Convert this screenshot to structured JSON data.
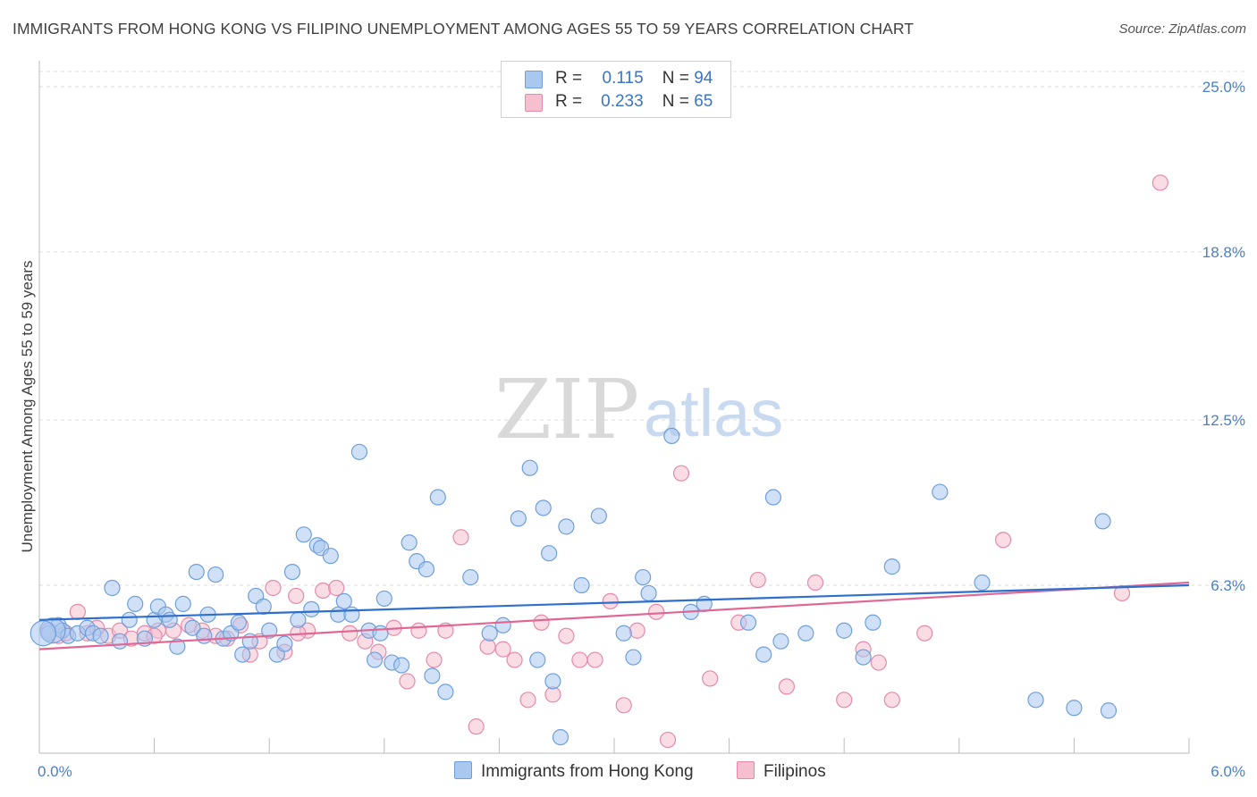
{
  "header": {
    "title": "IMMIGRANTS FROM HONG KONG VS FILIPINO UNEMPLOYMENT AMONG AGES 55 TO 59 YEARS CORRELATION CHART",
    "source": "Source: ZipAtlas.com"
  },
  "watermark": {
    "zip": "ZIP",
    "atlas": "atlas"
  },
  "legend": {
    "rows": [
      {
        "r_label": "R =",
        "r_value": "0.115",
        "n_label": "N =",
        "n_value": "94"
      },
      {
        "r_label": "R =",
        "r_value": "0.233",
        "n_label": "N =",
        "n_value": "65"
      }
    ]
  },
  "colors": {
    "blue_fill": "#a9c8f0",
    "blue_stroke": "#6f9fdb",
    "blue_line": "#2f6fcc",
    "pink_fill": "#f6bfd0",
    "pink_stroke": "#e58aaa",
    "pink_line": "#e06794",
    "tick_text": "#4a7fc8",
    "grid": "#dddddd"
  },
  "chart_data": {
    "type": "scatter",
    "title": "IMMIGRANTS FROM HONG KONG VS FILIPINO UNEMPLOYMENT AMONG AGES 55 TO 59 YEARS CORRELATION CHART",
    "xlabel": "",
    "ylabel": "Unemployment Among Ages 55 to 59 years",
    "xlim": [
      0,
      6.0
    ],
    "ylim": [
      0,
      25.0
    ],
    "x_tick_labels": [
      "0.0%",
      "6.0%"
    ],
    "y_ticks": [
      6.3,
      12.5,
      18.8,
      25.0
    ],
    "y_tick_labels": [
      "6.3%",
      "12.5%",
      "18.8%",
      "25.0%"
    ],
    "grid": "horizontal dashed",
    "legend_position": "top-center",
    "series": [
      {
        "name": "Immigrants from Hong Kong",
        "color": "#a9c8f0",
        "trend": {
          "x": [
            0,
            6.0
          ],
          "y": [
            5.0,
            6.3
          ]
        },
        "points": [
          [
            0.05,
            4.5
          ],
          [
            0.1,
            4.8
          ],
          [
            0.12,
            4.6
          ],
          [
            0.15,
            4.4
          ],
          [
            0.2,
            4.5
          ],
          [
            0.25,
            4.7
          ],
          [
            0.28,
            4.5
          ],
          [
            0.32,
            4.4
          ],
          [
            0.38,
            6.2
          ],
          [
            0.42,
            4.2
          ],
          [
            0.47,
            5.0
          ],
          [
            0.5,
            5.6
          ],
          [
            0.55,
            4.3
          ],
          [
            0.6,
            5.0
          ],
          [
            0.62,
            5.5
          ],
          [
            0.66,
            5.2
          ],
          [
            0.68,
            5.0
          ],
          [
            0.72,
            4.0
          ],
          [
            0.75,
            5.6
          ],
          [
            0.8,
            4.7
          ],
          [
            0.82,
            6.8
          ],
          [
            0.86,
            4.4
          ],
          [
            0.88,
            5.2
          ],
          [
            0.92,
            6.7
          ],
          [
            0.96,
            4.3
          ],
          [
            1.0,
            4.5
          ],
          [
            1.04,
            4.9
          ],
          [
            1.06,
            3.7
          ],
          [
            1.1,
            4.2
          ],
          [
            1.13,
            5.9
          ],
          [
            1.17,
            5.5
          ],
          [
            1.2,
            4.6
          ],
          [
            1.24,
            3.7
          ],
          [
            1.28,
            4.1
          ],
          [
            1.32,
            6.8
          ],
          [
            1.35,
            5.0
          ],
          [
            1.38,
            8.2
          ],
          [
            1.42,
            5.4
          ],
          [
            1.45,
            7.8
          ],
          [
            1.47,
            7.7
          ],
          [
            1.52,
            7.4
          ],
          [
            1.56,
            5.2
          ],
          [
            1.59,
            5.7
          ],
          [
            1.63,
            5.2
          ],
          [
            1.67,
            11.3
          ],
          [
            1.72,
            4.6
          ],
          [
            1.75,
            3.5
          ],
          [
            1.78,
            4.5
          ],
          [
            1.8,
            5.8
          ],
          [
            1.84,
            3.4
          ],
          [
            1.89,
            3.3
          ],
          [
            1.93,
            7.9
          ],
          [
            1.97,
            7.2
          ],
          [
            2.02,
            6.9
          ],
          [
            2.05,
            2.9
          ],
          [
            2.08,
            9.6
          ],
          [
            2.12,
            2.3
          ],
          [
            2.25,
            6.6
          ],
          [
            2.35,
            4.5
          ],
          [
            2.42,
            4.8
          ],
          [
            2.5,
            8.8
          ],
          [
            2.56,
            10.7
          ],
          [
            2.6,
            3.5
          ],
          [
            2.63,
            9.2
          ],
          [
            2.66,
            7.5
          ],
          [
            2.68,
            2.7
          ],
          [
            2.75,
            8.5
          ],
          [
            2.83,
            6.3
          ],
          [
            2.92,
            8.9
          ],
          [
            3.05,
            4.5
          ],
          [
            3.1,
            3.6
          ],
          [
            3.15,
            6.6
          ],
          [
            3.18,
            6.0
          ],
          [
            3.3,
            11.9
          ],
          [
            3.4,
            5.3
          ],
          [
            3.47,
            5.6
          ],
          [
            3.7,
            4.9
          ],
          [
            3.78,
            3.7
          ],
          [
            3.83,
            9.6
          ],
          [
            3.87,
            4.2
          ],
          [
            4.0,
            4.5
          ],
          [
            4.2,
            4.6
          ],
          [
            4.3,
            3.6
          ],
          [
            4.35,
            4.9
          ],
          [
            4.7,
            9.8
          ],
          [
            4.92,
            6.4
          ],
          [
            5.2,
            2.0
          ],
          [
            5.4,
            1.7
          ],
          [
            5.55,
            8.7
          ],
          [
            5.58,
            1.6
          ],
          [
            4.45,
            7.0
          ],
          [
            2.72,
            0.6
          ],
          [
            0.07,
            4.6
          ],
          [
            0.02,
            4.5
          ]
        ]
      },
      {
        "name": "Filipinos",
        "color": "#f6bfd0",
        "trend": {
          "x": [
            0,
            6.0
          ],
          "y": [
            3.9,
            6.4
          ]
        },
        "points": [
          [
            0.05,
            4.6
          ],
          [
            0.1,
            4.4
          ],
          [
            0.14,
            4.5
          ],
          [
            0.2,
            5.3
          ],
          [
            0.25,
            4.5
          ],
          [
            0.3,
            4.7
          ],
          [
            0.36,
            4.4
          ],
          [
            0.42,
            4.6
          ],
          [
            0.48,
            4.3
          ],
          [
            0.55,
            4.5
          ],
          [
            0.62,
            4.6
          ],
          [
            0.7,
            4.6
          ],
          [
            0.78,
            4.8
          ],
          [
            0.85,
            4.6
          ],
          [
            0.92,
            4.4
          ],
          [
            0.98,
            4.3
          ],
          [
            1.05,
            4.8
          ],
          [
            1.1,
            3.7
          ],
          [
            1.15,
            4.2
          ],
          [
            1.22,
            6.2
          ],
          [
            1.28,
            3.8
          ],
          [
            1.34,
            5.9
          ],
          [
            1.4,
            4.6
          ],
          [
            1.48,
            6.1
          ],
          [
            1.55,
            6.2
          ],
          [
            1.62,
            4.5
          ],
          [
            1.7,
            4.2
          ],
          [
            1.77,
            3.8
          ],
          [
            1.85,
            4.7
          ],
          [
            1.92,
            2.7
          ],
          [
            1.98,
            4.6
          ],
          [
            2.06,
            3.5
          ],
          [
            2.12,
            4.6
          ],
          [
            2.2,
            8.1
          ],
          [
            2.28,
            1.0
          ],
          [
            2.34,
            4.0
          ],
          [
            2.42,
            3.9
          ],
          [
            2.48,
            3.5
          ],
          [
            2.55,
            2.0
          ],
          [
            2.62,
            4.9
          ],
          [
            2.68,
            2.2
          ],
          [
            2.75,
            4.4
          ],
          [
            2.82,
            3.5
          ],
          [
            2.9,
            3.5
          ],
          [
            2.98,
            5.7
          ],
          [
            3.05,
            1.8
          ],
          [
            3.12,
            4.6
          ],
          [
            3.22,
            5.3
          ],
          [
            3.28,
            0.5
          ],
          [
            3.35,
            10.5
          ],
          [
            3.5,
            2.8
          ],
          [
            3.65,
            4.9
          ],
          [
            3.75,
            6.5
          ],
          [
            3.9,
            2.5
          ],
          [
            4.05,
            6.4
          ],
          [
            4.2,
            2.0
          ],
          [
            4.3,
            3.9
          ],
          [
            4.38,
            3.4
          ],
          [
            4.45,
            2.0
          ],
          [
            4.62,
            4.5
          ],
          [
            5.03,
            8.0
          ],
          [
            5.65,
            6.0
          ],
          [
            5.85,
            21.4
          ],
          [
            1.35,
            4.5
          ],
          [
            0.6,
            4.4
          ]
        ]
      }
    ]
  },
  "bottom_legend": {
    "items": [
      {
        "label": "Immigrants from Hong Kong"
      },
      {
        "label": "Filipinos"
      }
    ]
  }
}
